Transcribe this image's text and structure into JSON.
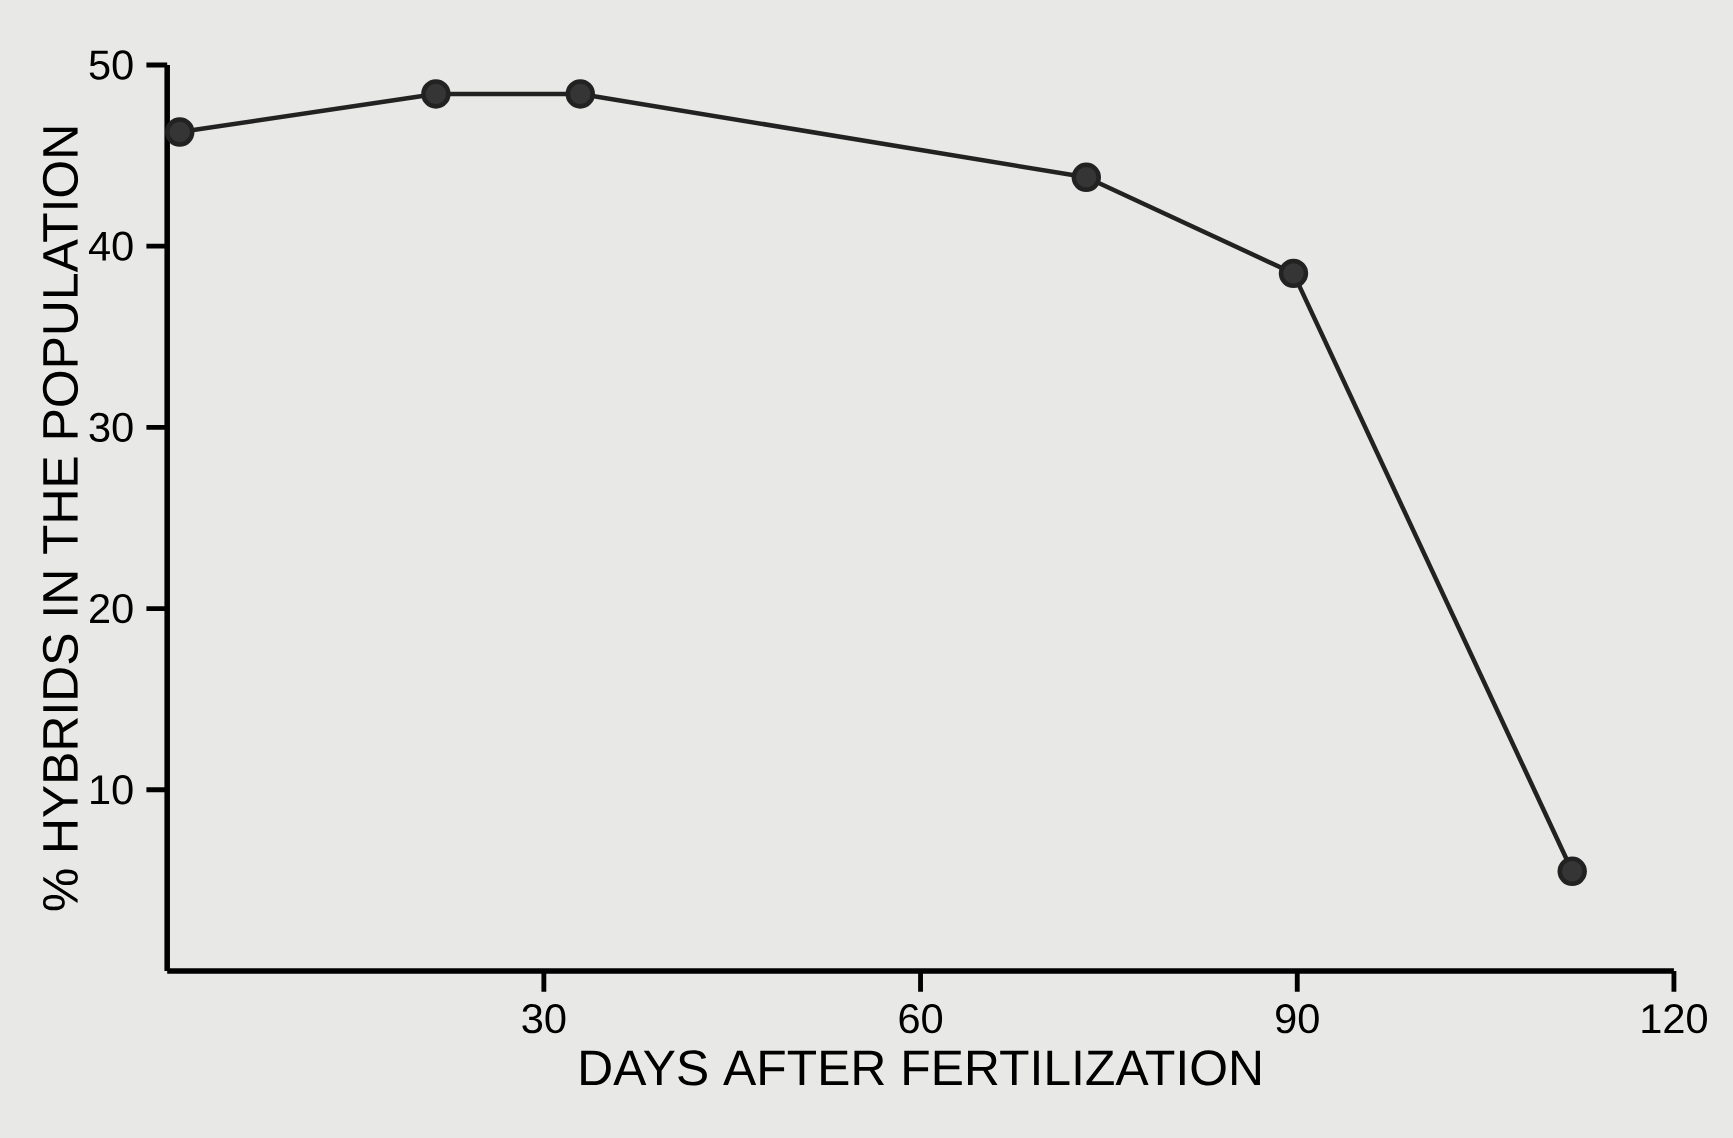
{
  "chart_data": {
    "type": "line",
    "xlabel": "DAYS AFTER FERTILIZATION",
    "ylabel": "% HYBRIDS IN THE POPULATION",
    "x": [
      1,
      21.4,
      32.9,
      73.2,
      89.7,
      111.9
    ],
    "values": [
      46.3,
      48.4,
      48.4,
      43.8,
      38.5,
      5.5
    ],
    "color": "#222222",
    "marker": "circle",
    "line_style": "solid",
    "xlim": [
      0,
      120
    ],
    "ylim": [
      0,
      50
    ],
    "xticks": [
      30,
      60,
      90,
      120
    ],
    "yticks": [
      10,
      20,
      30,
      40,
      50
    ]
  }
}
